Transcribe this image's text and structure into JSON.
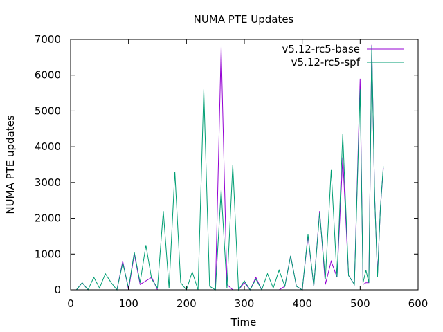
{
  "chart_data": {
    "type": "line",
    "title": "NUMA PTE Updates",
    "xlabel": "Time",
    "ylabel": "NUMA PTE updates",
    "xlim": [
      0,
      600
    ],
    "ylim": [
      0,
      7000
    ],
    "xticks": [
      0,
      100,
      200,
      300,
      400,
      500,
      600
    ],
    "yticks": [
      0,
      1000,
      2000,
      3000,
      4000,
      5000,
      6000,
      7000
    ],
    "grid": false,
    "legend_position": "top-right",
    "series": [
      {
        "name": "v5.12-rc5-base",
        "color": "#9400d3",
        "x": [
          10,
          20,
          30,
          40,
          50,
          60,
          70,
          80,
          90,
          100,
          110,
          120,
          130,
          140,
          150,
          160,
          170,
          180,
          190,
          200,
          210,
          220,
          230,
          240,
          250,
          260,
          270,
          280,
          290,
          300,
          310,
          320,
          330,
          340,
          350,
          360,
          370,
          380,
          390,
          400,
          410,
          420,
          430,
          440,
          450,
          460,
          470,
          480,
          490,
          500,
          505,
          510,
          515,
          520,
          525,
          530,
          535,
          540
        ],
        "y": [
          0,
          200,
          0,
          0,
          0,
          0,
          0,
          0,
          800,
          0,
          1000,
          150,
          250,
          350,
          0,
          0,
          0,
          0,
          0,
          0,
          0,
          0,
          0,
          0,
          0,
          6800,
          150,
          0,
          0,
          200,
          0,
          350,
          0,
          0,
          0,
          0,
          100,
          950,
          100,
          0,
          1500,
          100,
          2200,
          150,
          800,
          350,
          3700,
          400,
          150,
          5900,
          150,
          200,
          200,
          6850,
          2600,
          400,
          2300,
          3400
        ]
      },
      {
        "name": "v5.12-rc5-spf",
        "color": "#009e73",
        "x": [
          10,
          20,
          30,
          40,
          50,
          60,
          70,
          80,
          90,
          100,
          110,
          120,
          130,
          140,
          150,
          160,
          170,
          180,
          190,
          200,
          210,
          220,
          230,
          240,
          250,
          260,
          270,
          280,
          290,
          300,
          310,
          320,
          330,
          340,
          350,
          360,
          370,
          380,
          390,
          400,
          410,
          420,
          430,
          440,
          450,
          460,
          470,
          480,
          490,
          500,
          505,
          510,
          515,
          520,
          525,
          530,
          535,
          540
        ],
        "y": [
          0,
          200,
          0,
          350,
          50,
          450,
          200,
          0,
          750,
          50,
          1050,
          200,
          1250,
          300,
          50,
          2200,
          50,
          3300,
          200,
          0,
          500,
          0,
          5600,
          100,
          0,
          2800,
          50,
          3500,
          0,
          250,
          0,
          300,
          0,
          450,
          50,
          550,
          100,
          950,
          100,
          0,
          1550,
          100,
          2150,
          300,
          3350,
          350,
          4350,
          400,
          150,
          5600,
          200,
          550,
          200,
          6800,
          2600,
          350,
          2300,
          3450
        ]
      }
    ]
  }
}
